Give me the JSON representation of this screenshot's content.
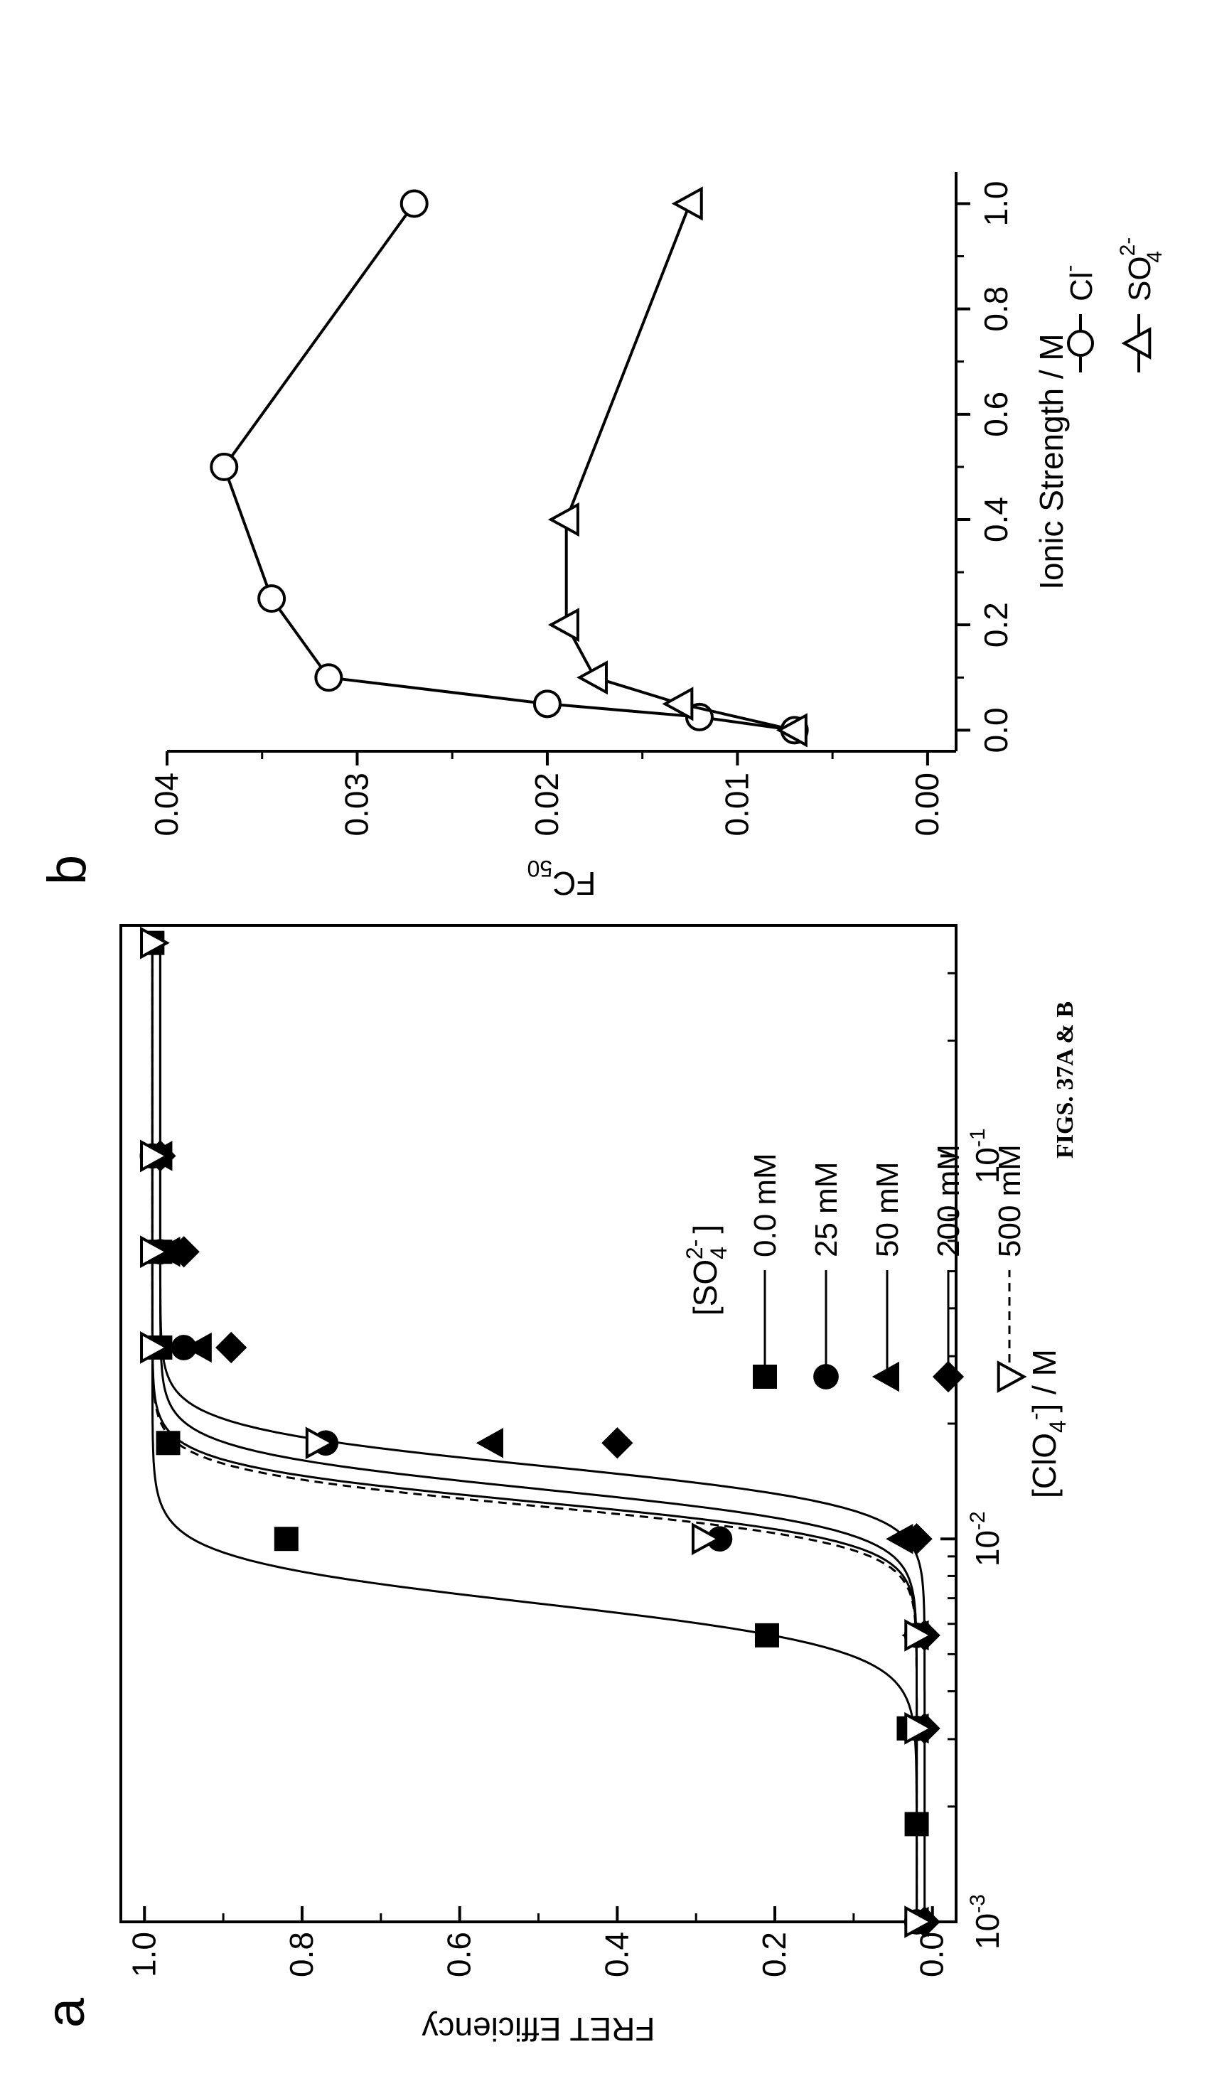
{
  "caption": "FIGS. 37A & B",
  "panel_labels": {
    "a": "a",
    "b": "b"
  },
  "chart_data": [
    {
      "panel": "a",
      "type": "line",
      "x_scale": "log",
      "xlabel_parts": [
        "[ClO",
        "4",
        "-",
        "] / M"
      ],
      "ylabel": "FRET Efficiency",
      "xlim": [
        0.001,
        0.4
      ],
      "ylim": [
        -0.03,
        1.03
      ],
      "x_tick_labels": [
        {
          "x": 0.001,
          "base": "10",
          "exp": "-3"
        },
        {
          "x": 0.01,
          "base": "10",
          "exp": "-2"
        },
        {
          "x": 0.1,
          "base": "10",
          "exp": "-1"
        }
      ],
      "y_ticks": [
        0.0,
        0.2,
        0.4,
        0.6,
        0.8,
        1.0
      ],
      "y_tick_labels": [
        "0.0",
        "0.2",
        "0.4",
        "0.6",
        "0.8",
        "1.0"
      ],
      "legend_title_parts": [
        "[SO",
        "4",
        "2-",
        "]"
      ],
      "legend_position": "center-right",
      "series": [
        {
          "name": "0.0  mM",
          "marker": "square",
          "line": "solid",
          "midpoint": 0.0068,
          "hill": 7.5,
          "x": [
            0.001,
            0.0018,
            0.0032,
            0.0056,
            0.01,
            0.0178,
            0.0316,
            0.0562,
            0.1,
            0.36
          ],
          "y": [
            0.02,
            0.02,
            0.03,
            0.21,
            0.82,
            0.97,
            0.98,
            0.98,
            0.99,
            0.99
          ]
        },
        {
          "name": "25   mM",
          "marker": "circle",
          "line": "solid",
          "midpoint": 0.0125,
          "hill": 9,
          "x": [
            0.001,
            0.0032,
            0.0056,
            0.01,
            0.0178,
            0.0316,
            0.0562,
            0.1
          ],
          "y": [
            0.02,
            0.02,
            0.02,
            0.27,
            0.77,
            0.95,
            0.98,
            0.99
          ]
        },
        {
          "name": "50   mM",
          "marker": "triangle-up",
          "line": "solid",
          "midpoint": 0.0135,
          "hill": 8.5,
          "x": [
            0.001,
            0.0032,
            0.0056,
            0.01,
            0.0178,
            0.0316,
            0.0562,
            0.1
          ],
          "y": [
            0.02,
            0.02,
            0.02,
            0.04,
            0.56,
            0.93,
            0.97,
            0.98
          ]
        },
        {
          "name": "200 mM",
          "marker": "diamond",
          "line": "solid",
          "midpoint": 0.0155,
          "hill": 8.5,
          "x": [
            0.001,
            0.0032,
            0.0056,
            0.01,
            0.0178,
            0.0316,
            0.0562,
            0.1
          ],
          "y": [
            0.01,
            0.01,
            0.01,
            0.02,
            0.4,
            0.89,
            0.95,
            0.98
          ]
        },
        {
          "name": "500 mM",
          "marker": "triangle-down-open",
          "line": "dashed",
          "midpoint": 0.0122,
          "hill": 9,
          "x": [
            0.001,
            0.0032,
            0.0056,
            0.01,
            0.0178,
            0.0316,
            0.0562,
            0.1,
            0.36
          ],
          "y": [
            0.02,
            0.02,
            0.02,
            0.29,
            0.78,
            0.99,
            0.99,
            0.99,
            0.99
          ]
        }
      ]
    },
    {
      "panel": "b",
      "type": "line",
      "xlabel": "Ionic Strength / M",
      "ylabel_parts": [
        "FC",
        "50"
      ],
      "xlim": [
        -0.04,
        1.06
      ],
      "ylim": [
        -0.0015,
        0.04
      ],
      "x_ticks": [
        0.0,
        0.2,
        0.4,
        0.6,
        0.8,
        1.0
      ],
      "x_tick_labels": [
        "0.0",
        "0.2",
        "0.4",
        "0.6",
        "0.8",
        "1.0"
      ],
      "y_ticks": [
        0.0,
        0.01,
        0.02,
        0.03,
        0.04
      ],
      "y_tick_labels": [
        "0.00",
        "0.01",
        "0.02",
        "0.03",
        "0.04"
      ],
      "legend_position": "bottom-right",
      "series": [
        {
          "name_parts": [
            "Cl",
            "-",
            ""
          ],
          "marker": "circle-open",
          "x": [
            0.0,
            0.025,
            0.05,
            0.1,
            0.25,
            0.5,
            1.0
          ],
          "y": [
            0.007,
            0.012,
            0.02,
            0.0315,
            0.0345,
            0.037,
            0.027
          ]
        },
        {
          "name_parts": [
            "SO",
            "2-",
            "4"
          ],
          "marker": "triangle-up-open",
          "x": [
            0.0,
            0.05,
            0.1,
            0.2,
            0.4,
            1.0
          ],
          "y": [
            0.007,
            0.013,
            0.0175,
            0.019,
            0.019,
            0.0125
          ]
        }
      ]
    }
  ]
}
